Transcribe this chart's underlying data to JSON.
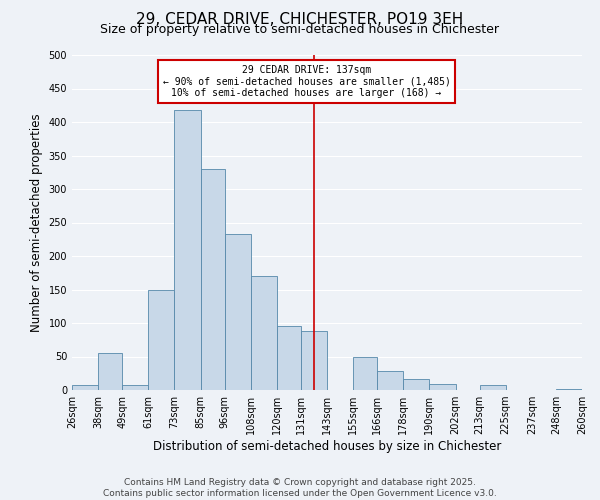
{
  "title": "29, CEDAR DRIVE, CHICHESTER, PO19 3EH",
  "subtitle": "Size of property relative to semi-detached houses in Chichester",
  "xlabel": "Distribution of semi-detached houses by size in Chichester",
  "ylabel": "Number of semi-detached properties",
  "bin_labels": [
    "26sqm",
    "38sqm",
    "49sqm",
    "61sqm",
    "73sqm",
    "85sqm",
    "96sqm",
    "108sqm",
    "120sqm",
    "131sqm",
    "143sqm",
    "155sqm",
    "166sqm",
    "178sqm",
    "190sqm",
    "202sqm",
    "213sqm",
    "225sqm",
    "237sqm",
    "248sqm",
    "260sqm"
  ],
  "bin_edges": [
    26,
    38,
    49,
    61,
    73,
    85,
    96,
    108,
    120,
    131,
    143,
    155,
    166,
    178,
    190,
    202,
    213,
    225,
    237,
    248,
    260
  ],
  "bar_heights": [
    7,
    55,
    7,
    150,
    418,
    330,
    233,
    170,
    95,
    88,
    0,
    50,
    28,
    17,
    9,
    0,
    7,
    0,
    0,
    2,
    0
  ],
  "bar_color": "#c8d8e8",
  "bar_edge_color": "#5588aa",
  "property_size": 137,
  "vline_color": "#cc0000",
  "ylim": [
    0,
    500
  ],
  "yticks": [
    0,
    50,
    100,
    150,
    200,
    250,
    300,
    350,
    400,
    450,
    500
  ],
  "annotation_title": "29 CEDAR DRIVE: 137sqm",
  "annotation_line1": "← 90% of semi-detached houses are smaller (1,485)",
  "annotation_line2": "10% of semi-detached houses are larger (168) →",
  "annotation_box_color": "#cc0000",
  "footer1": "Contains HM Land Registry data © Crown copyright and database right 2025.",
  "footer2": "Contains public sector information licensed under the Open Government Licence v3.0.",
  "background_color": "#eef2f7",
  "grid_color": "#ffffff",
  "title_fontsize": 11,
  "subtitle_fontsize": 9,
  "label_fontsize": 8.5,
  "tick_fontsize": 7,
  "footer_fontsize": 6.5,
  "ann_fontsize": 7
}
